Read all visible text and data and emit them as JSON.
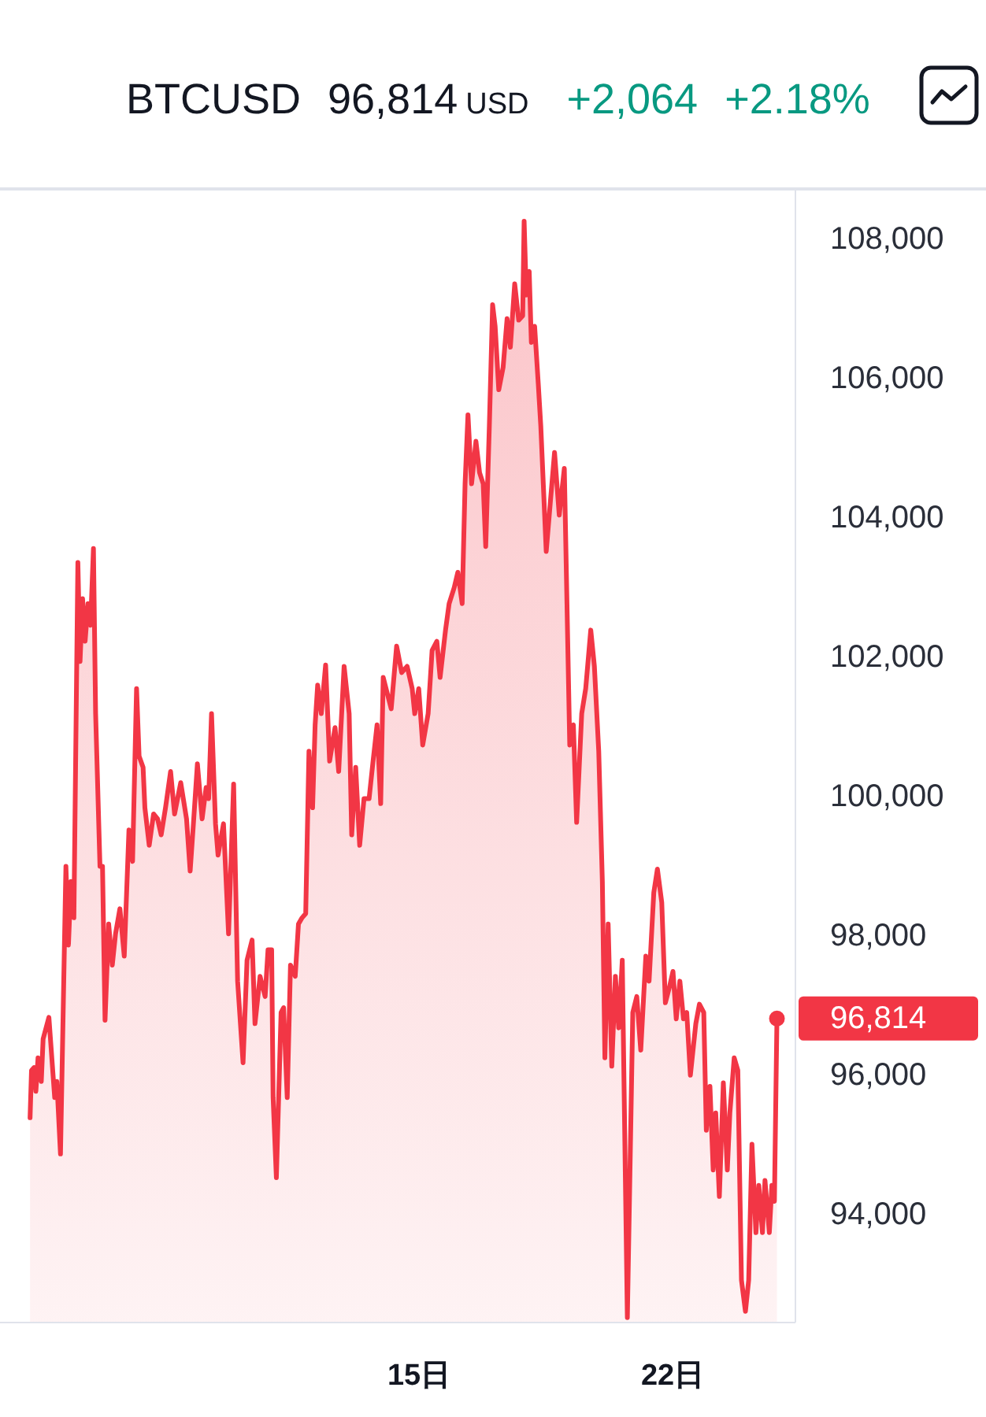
{
  "chart_data": {
    "type": "area",
    "title": "BTCUSD",
    "annotations": [
      "96,814",
      "USD",
      "+2,064",
      "+2.18%",
      {
        "text": "96,814",
        "x": 24.88,
        "y": 96814
      }
    ],
    "x": [
      4.26,
      4.3,
      4.37,
      4.42,
      4.48,
      4.57,
      4.62,
      4.78,
      4.94,
      5.0,
      5.1,
      5.25,
      5.32,
      5.39,
      5.47,
      5.58,
      5.64,
      5.71,
      5.78,
      5.86,
      5.93,
      6.01,
      6.07,
      6.19,
      6.26,
      6.33,
      6.43,
      6.53,
      6.62,
      6.74,
      6.86,
      6.99,
      7.09,
      7.2,
      7.27,
      7.38,
      7.43,
      7.55,
      7.67,
      7.78,
      7.88,
      8.0,
      8.14,
      8.25,
      8.42,
      8.58,
      8.68,
      8.77,
      8.88,
      9.01,
      9.12,
      9.19,
      9.27,
      9.38,
      9.45,
      9.6,
      9.74,
      9.88,
      9.99,
      10.14,
      10.25,
      10.39,
      10.47,
      10.61,
      10.75,
      10.83,
      10.93,
      10.97,
      11.06,
      11.19,
      11.26,
      11.36,
      11.45,
      11.58,
      11.67,
      11.77,
      11.87,
      11.96,
      12.06,
      12.13,
      12.2,
      12.3,
      12.42,
      12.53,
      12.68,
      12.78,
      12.93,
      13.07,
      13.14,
      13.25,
      13.36,
      13.48,
      13.62,
      13.73,
      13.84,
      13.94,
      14.01,
      14.23,
      14.38,
      14.52,
      14.67,
      14.81,
      14.88,
      14.99,
      15.1,
      15.25,
      15.36,
      15.49,
      15.58,
      15.73,
      15.83,
      15.97,
      16.07,
      16.19,
      16.27,
      16.35,
      16.45,
      16.57,
      16.67,
      16.77,
      16.84,
      16.94,
      17.03,
      17.1,
      17.2,
      17.32,
      17.43,
      17.52,
      17.64,
      17.75,
      17.86,
      17.9,
      17.96,
      18.04,
      18.1,
      18.19,
      18.29,
      18.36,
      18.51,
      18.62,
      18.74,
      18.87,
      19.01,
      19.16,
      19.26,
      19.35,
      19.49,
      19.6,
      19.74,
      19.84,
      19.96,
      20.06,
      20.13,
      20.22,
      20.32,
      20.42,
      20.51,
      20.61,
      20.75,
      20.9,
      21.01,
      21.12,
      21.26,
      21.35,
      21.48,
      21.58,
      21.7,
      21.8,
      21.91,
      22.01,
      22.1,
      22.2,
      22.3,
      22.39,
      22.49,
      22.64,
      22.74,
      22.86,
      22.93,
      23.03,
      23.12,
      23.19,
      23.29,
      23.4,
      23.51,
      23.58,
      23.7,
      23.8,
      23.9,
      24.01,
      24.1,
      24.19,
      24.3,
      24.38,
      24.48,
      24.55,
      24.67,
      24.74,
      24.81,
      24.88
    ],
    "series": [
      {
        "color": "#f23645",
        "values": [
          95390,
          96070,
          96110,
          95770,
          96250,
          95910,
          96520,
          96830,
          95680,
          95910,
          94870,
          99000,
          97870,
          98780,
          98260,
          103360,
          101940,
          102840,
          102230,
          102770,
          102460,
          103560,
          101190,
          99000,
          99000,
          96790,
          98170,
          97580,
          98030,
          98390,
          97710,
          99520,
          99070,
          101550,
          100580,
          100420,
          99840,
          99300,
          99750,
          99680,
          99450,
          99840,
          100360,
          99750,
          100200,
          99680,
          98930,
          99610,
          100470,
          99680,
          100130,
          99970,
          101190,
          99610,
          99160,
          99610,
          98030,
          100180,
          97350,
          96180,
          97650,
          97940,
          96740,
          97420,
          97130,
          97800,
          97800,
          95680,
          94530,
          96900,
          96970,
          95680,
          97580,
          97420,
          98170,
          98260,
          98320,
          100650,
          99840,
          101030,
          101600,
          101190,
          101890,
          100510,
          100990,
          100360,
          101870,
          101190,
          99450,
          100420,
          99300,
          99970,
          99970,
          100510,
          101030,
          99900,
          101710,
          101260,
          102160,
          101780,
          101870,
          101550,
          101190,
          101550,
          100740,
          101190,
          102100,
          102230,
          101710,
          102390,
          102770,
          103000,
          103220,
          102770,
          104490,
          105480,
          104490,
          105100,
          104650,
          104490,
          103590,
          105320,
          107060,
          106750,
          105840,
          106160,
          106860,
          106450,
          107360,
          106840,
          106900,
          108260,
          107200,
          107540,
          106520,
          106750,
          105930,
          105320,
          103520,
          104200,
          104940,
          104040,
          104710,
          100740,
          101030,
          99630,
          101190,
          101550,
          102390,
          101870,
          100650,
          98780,
          96250,
          98170,
          96130,
          97420,
          96680,
          97650,
          92520,
          96900,
          97130,
          96360,
          97710,
          97350,
          98620,
          98960,
          98480,
          97040,
          97260,
          97490,
          96810,
          97350,
          96810,
          96900,
          96000,
          96740,
          97020,
          96900,
          95210,
          95840,
          94640,
          95460,
          94260,
          95890,
          94640,
          95460,
          96250,
          96070,
          93060,
          92610,
          93060,
          95010,
          93740,
          94420,
          93740,
          94490,
          93740,
          94420,
          94190,
          96814
        ]
      }
    ],
    "xlim": [
      3.43,
      25.39
    ],
    "xticks": [
      {
        "value": 15,
        "label": "15日"
      },
      {
        "value": 22,
        "label": "22日"
      }
    ],
    "ylim": [
      92450,
      108700
    ],
    "yticks": [
      {
        "value": 94000,
        "label": "94,000"
      },
      {
        "value": 96000,
        "label": "96,000"
      },
      {
        "value": 98000,
        "label": "98,000"
      },
      {
        "value": 100000,
        "label": "100,000"
      },
      {
        "value": 102000,
        "label": "102,000"
      },
      {
        "value": 104000,
        "label": "104,000"
      },
      {
        "value": 106000,
        "label": "106,000"
      },
      {
        "value": 108000,
        "label": "108,000"
      }
    ]
  }
}
